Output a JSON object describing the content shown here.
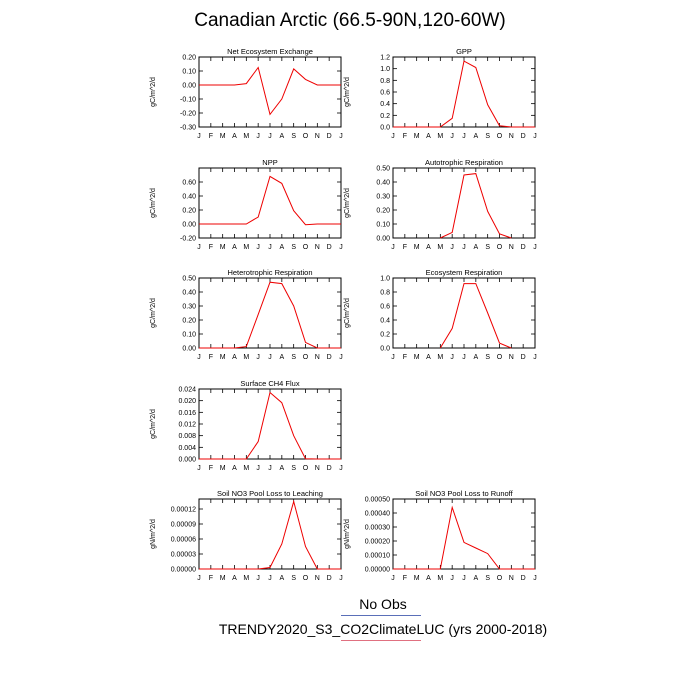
{
  "title": "Canadian Arctic (66.5-90N,120-60W)",
  "months": [
    "J",
    "F",
    "M",
    "A",
    "M",
    "J",
    "J",
    "A",
    "S",
    "O",
    "N",
    "D",
    "J"
  ],
  "line_color": "#ee0000",
  "chart_data": [
    {
      "type": "line",
      "title": "Net Ecosystem Exchange",
      "ylabel": "gC/m^2/d",
      "ylim": [
        -0.3,
        0.2
      ],
      "yticks": [
        "0.20",
        "0.10",
        "0.00",
        "-0.10",
        "-0.20",
        "-0.30"
      ],
      "ytick_values": [
        0.2,
        0.1,
        0.0,
        -0.1,
        -0.2,
        -0.3
      ],
      "values": [
        0,
        0,
        0,
        0,
        0.01,
        0.125,
        -0.21,
        -0.1,
        0.115,
        0.04,
        0,
        0,
        0
      ]
    },
    {
      "type": "line",
      "title": "GPP",
      "ylabel": "gC/m^2/d",
      "ylim": [
        0,
        1.2
      ],
      "yticks": [
        "1.2",
        "1.0",
        "0.8",
        "0.6",
        "0.4",
        "0.2",
        "0.0"
      ],
      "ytick_values": [
        1.2,
        1.0,
        0.8,
        0.6,
        0.4,
        0.2,
        0.0
      ],
      "values": [
        0,
        0,
        0,
        0,
        0,
        0.15,
        1.13,
        1.02,
        0.38,
        0.02,
        0,
        0,
        0
      ]
    },
    {
      "type": "line",
      "title": "NPP",
      "ylabel": "gC/m^2/d",
      "ylim": [
        -0.2,
        0.8
      ],
      "yticks": [
        "0.60",
        "0.40",
        "0.20",
        "0.00",
        "-0.20"
      ],
      "ytick_values": [
        0.6,
        0.4,
        0.2,
        0.0,
        -0.2
      ],
      "values": [
        0,
        0,
        0,
        0,
        0,
        0.1,
        0.68,
        0.58,
        0.19,
        -0.01,
        0,
        0,
        0
      ]
    },
    {
      "type": "line",
      "title": "Autotrophic Respiration",
      "ylabel": "gC/m^2/d",
      "ylim": [
        0,
        0.5
      ],
      "yticks": [
        "0.50",
        "0.40",
        "0.30",
        "0.20",
        "0.10",
        "0.00"
      ],
      "ytick_values": [
        0.5,
        0.4,
        0.3,
        0.2,
        0.1,
        0.0
      ],
      "values": [
        null,
        null,
        null,
        null,
        0,
        0.04,
        0.45,
        0.46,
        0.19,
        0.03,
        0,
        null,
        null
      ]
    },
    {
      "type": "line",
      "title": "Heterotrophic Respiration",
      "ylabel": "gC/m^2/d",
      "ylim": [
        0,
        0.5
      ],
      "yticks": [
        "0.50",
        "0.40",
        "0.30",
        "0.20",
        "0.10",
        "0.00"
      ],
      "ytick_values": [
        0.5,
        0.4,
        0.3,
        0.2,
        0.1,
        0.0
      ],
      "values": [
        0,
        0,
        0,
        0,
        0.01,
        0.24,
        0.47,
        0.46,
        0.3,
        0.04,
        0,
        0,
        0
      ]
    },
    {
      "type": "line",
      "title": "Ecosystem Respiration",
      "ylabel": "gC/m^2/d",
      "ylim": [
        0,
        1.0
      ],
      "yticks": [
        "1.0",
        "0.8",
        "0.6",
        "0.4",
        "0.2",
        "0.0"
      ],
      "ytick_values": [
        1.0,
        0.8,
        0.6,
        0.4,
        0.2,
        0.0
      ],
      "values": [
        null,
        null,
        null,
        null,
        0,
        0.28,
        0.92,
        0.92,
        0.5,
        0.07,
        0,
        null,
        null
      ]
    },
    {
      "type": "line",
      "title": "Surface CH4 Flux",
      "ylabel": "gC/m^2/d",
      "ylim": [
        0,
        0.024
      ],
      "yticks": [
        "0.024",
        "0.020",
        "0.016",
        "0.012",
        "0.008",
        "0.004",
        "0.000"
      ],
      "ytick_values": [
        0.024,
        0.02,
        0.016,
        0.012,
        0.008,
        0.004,
        0.0
      ],
      "values": [
        0,
        0,
        0,
        0,
        0,
        0.006,
        0.0228,
        0.0193,
        0.008,
        0.0001,
        0,
        0,
        0
      ]
    },
    {
      "type": "line",
      "title": "Soil NO3 Pool Loss to Leaching",
      "ylabel": "gN/m^2/d",
      "ylim": [
        0,
        0.00014
      ],
      "yticks": [
        "0.00012",
        "0.00009",
        "0.00006",
        "0.00003",
        "0.00000"
      ],
      "ytick_values": [
        0.00012,
        9e-05,
        6e-05,
        3e-05,
        0.0
      ],
      "values": [
        0,
        0,
        0,
        0,
        0,
        0,
        3e-06,
        5e-05,
        0.000135,
        4.5e-05,
        0,
        0,
        0
      ]
    },
    {
      "type": "line",
      "title": "Soil NO3 Pool Loss to Runoff",
      "ylabel": "gN/m^2/d",
      "ylim": [
        0,
        0.0005
      ],
      "yticks": [
        "0.00050",
        "0.00040",
        "0.00030",
        "0.00020",
        "0.00010",
        "0.00000"
      ],
      "ytick_values": [
        0.0005,
        0.0004,
        0.0003,
        0.0002,
        0.0001,
        0.0
      ],
      "values": [
        0,
        0,
        0,
        0,
        0,
        0.00044,
        0.00019,
        0.00015,
        0.00011,
        0,
        0,
        0,
        0
      ]
    }
  ],
  "legend": {
    "obs_label": "No Obs",
    "case_label": "TRENDY2020_S3_CO2ClimateLUC (yrs 2000-2018)"
  }
}
